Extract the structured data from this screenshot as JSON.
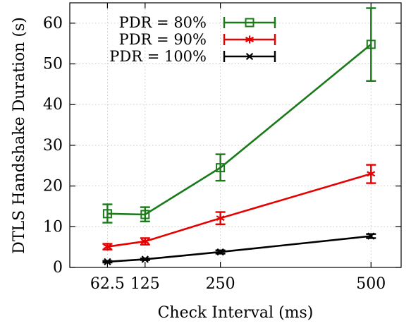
{
  "chart_data": {
    "type": "line",
    "x": [
      62.5,
      125,
      250,
      500
    ],
    "xticks": [
      "62.5",
      "125",
      "250",
      "500"
    ],
    "yticks": [
      0,
      10,
      20,
      30,
      40,
      50,
      60
    ],
    "xlim": [
      0,
      550
    ],
    "ylim": [
      0,
      65
    ],
    "xlabel": "Check Interval (ms)",
    "ylabel": "DTLS Handshake Duration (s)",
    "grid": true,
    "legend_position": "top-left",
    "series": [
      {
        "name": "PDR = 80%",
        "color": "#1a7a1a",
        "marker": "open-square",
        "values": [
          13.2,
          13.0,
          24.5,
          54.8
        ],
        "err_low": [
          11.0,
          11.3,
          21.3,
          45.8
        ],
        "err_high": [
          15.5,
          14.8,
          27.8,
          63.7
        ]
      },
      {
        "name": "PDR = 90%",
        "color": "#e60000",
        "marker": "star",
        "values": [
          5.1,
          6.4,
          12.1,
          23.0
        ],
        "err_low": [
          4.4,
          5.6,
          10.6,
          20.7
        ],
        "err_high": [
          5.8,
          7.2,
          13.6,
          25.2
        ]
      },
      {
        "name": "PDR = 100%",
        "color": "#000000",
        "marker": "x",
        "values": [
          1.4,
          2.0,
          3.8,
          7.7
        ],
        "err_low": [
          1.2,
          1.8,
          3.4,
          7.2
        ],
        "err_high": [
          1.6,
          2.2,
          4.2,
          8.2
        ]
      }
    ]
  }
}
